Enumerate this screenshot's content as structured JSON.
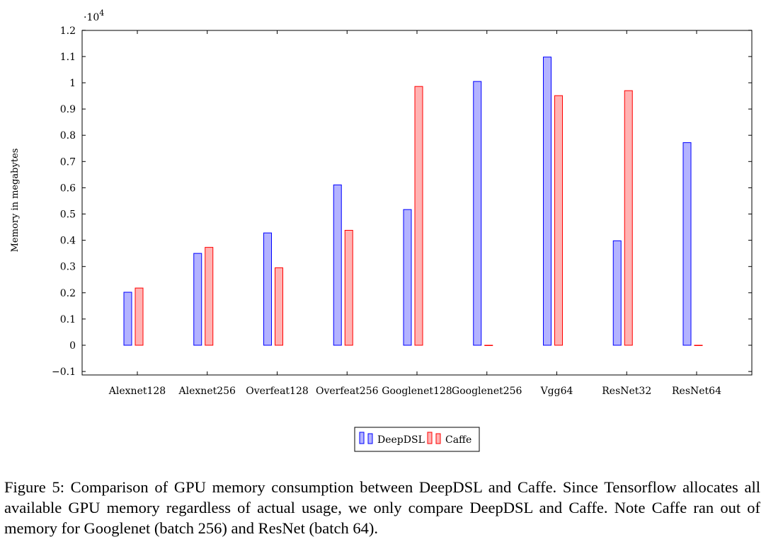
{
  "chart_data": {
    "type": "bar",
    "ylabel": "Memory in megabytes",
    "y_multiplier": "·10",
    "y_multiplier_exponent": "4",
    "ylim": [
      -0.1,
      1.2
    ],
    "yticks": [
      "−0.1",
      "0",
      "0.1",
      "0.2",
      "0.3",
      "0.4",
      "0.5",
      "0.6",
      "0.7",
      "0.8",
      "0.9",
      "1",
      "1.1",
      "1.2"
    ],
    "categories": [
      "Alexnet128",
      "Alexnet256",
      "Overfeat128",
      "Overfeat256",
      "Googlenet128",
      "Googlenet256",
      "Vgg64",
      "ResNet32",
      "ResNet64"
    ],
    "series": [
      {
        "name": "DeepDSL",
        "values": [
          0.202,
          0.35,
          0.428,
          0.611,
          0.517,
          1.005,
          1.098,
          0.398,
          0.772
        ]
      },
      {
        "name": "Caffe",
        "values": [
          0.218,
          0.373,
          0.295,
          0.438,
          0.986,
          0,
          0.951,
          0.97,
          0
        ]
      }
    ],
    "colors": {
      "DeepDSL": {
        "fill": "#b3b3ff",
        "stroke": "#0000ff"
      },
      "Caffe": {
        "fill": "#ffb3b3",
        "stroke": "#ff0000"
      }
    },
    "legend_position": "bottom-center",
    "grid": false
  },
  "caption": "Figure 5: Comparison of GPU memory consumption between DeepDSL and Caffe. Since Tensorflow allocates all available GPU memory regardless of actual usage, we only compare DeepDSL and Caffe. Note Caffe ran out of memory for Googlenet (batch 256) and ResNet (batch 64)."
}
